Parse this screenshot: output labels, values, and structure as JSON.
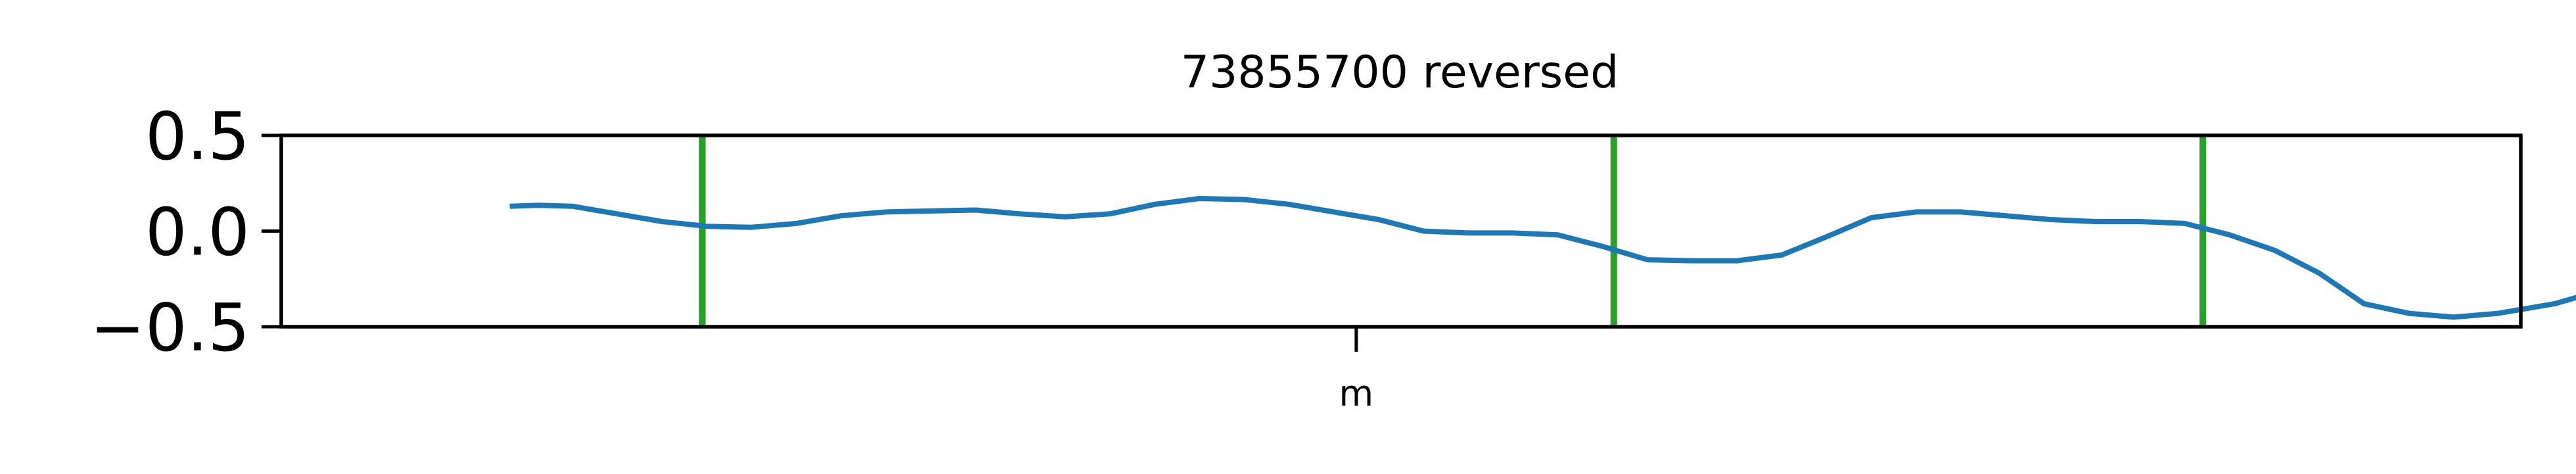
{
  "chart_data": {
    "type": "line",
    "title": "73855700 reversed",
    "xlabel": "",
    "ylabel": "",
    "ylim": [
      -0.5,
      0.5
    ],
    "xlim": [
      0,
      100
    ],
    "y_ticks": [
      0.5,
      0.0,
      -0.5
    ],
    "y_tick_labels": [
      "0.5",
      "0.0",
      "−0.5"
    ],
    "x_ticks": [
      48
    ],
    "x_tick_labels": [
      "m"
    ],
    "grid": false,
    "legend": "none",
    "series": [
      {
        "color": "#1f77b4",
        "x": [
          10.2,
          11.5,
          13,
          15,
          17,
          19,
          21,
          23,
          25,
          27,
          29,
          31,
          33,
          35,
          37,
          39,
          41,
          43,
          45,
          47,
          49,
          51,
          53,
          55,
          57,
          59,
          61,
          63,
          65,
          67,
          69,
          71,
          73,
          75,
          77,
          79,
          81,
          83,
          85,
          87,
          89,
          91,
          93,
          95,
          97,
          99,
          101.5,
          103,
          105
        ],
        "y": [
          0.13,
          0.135,
          0.13,
          0.09,
          0.05,
          0.025,
          0.02,
          0.04,
          0.08,
          0.1,
          0.105,
          0.11,
          0.09,
          0.075,
          0.09,
          0.14,
          0.17,
          0.165,
          0.14,
          0.1,
          0.06,
          0.0,
          -0.01,
          -0.01,
          -0.02,
          -0.08,
          -0.15,
          -0.155,
          -0.155,
          -0.125,
          -0.03,
          0.07,
          0.1,
          0.1,
          0.08,
          0.06,
          0.05,
          0.05,
          0.04,
          -0.02,
          -0.1,
          -0.22,
          -0.38,
          -0.43,
          -0.45,
          -0.43,
          -0.38,
          -0.33,
          -0.24
        ]
      }
    ],
    "vlines": {
      "color": "#2ca02c",
      "x": [
        18.8,
        59.5,
        85.8
      ]
    }
  }
}
